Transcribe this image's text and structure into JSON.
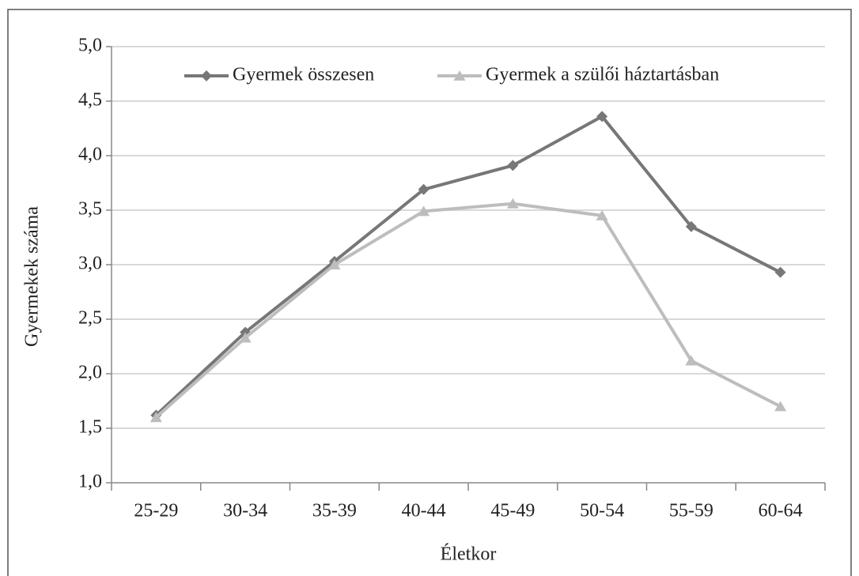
{
  "chart_data": {
    "type": "line",
    "x_label": "Életkor",
    "y_label": "Gyermekek száma",
    "categories": [
      "25-29",
      "30-34",
      "35-39",
      "40-44",
      "45-49",
      "50-54",
      "55-59",
      "60-64"
    ],
    "series": [
      {
        "name": "Gyermek összesen",
        "color": "#777777",
        "marker": "diamond",
        "values": [
          1.62,
          2.38,
          3.03,
          3.69,
          3.91,
          4.36,
          3.35,
          2.93
        ]
      },
      {
        "name": "Gyermek a szülői háztartásban",
        "color": "#bdbdbd",
        "marker": "triangle",
        "values": [
          1.6,
          2.33,
          3.0,
          3.49,
          3.56,
          3.45,
          2.12,
          1.7
        ]
      }
    ],
    "ylim": [
      1.0,
      5.0
    ],
    "yticks": [
      {
        "value": 1.0,
        "label": "1,0"
      },
      {
        "value": 1.5,
        "label": "1,5"
      },
      {
        "value": 2.0,
        "label": "2,0"
      },
      {
        "value": 2.5,
        "label": "2,5"
      },
      {
        "value": 3.0,
        "label": "3,0"
      },
      {
        "value": 3.5,
        "label": "3,5"
      },
      {
        "value": 4.0,
        "label": "4,0"
      },
      {
        "value": 4.5,
        "label": "4,5"
      },
      {
        "value": 5.0,
        "label": "5,0"
      }
    ],
    "grid": true,
    "legend": "top"
  }
}
